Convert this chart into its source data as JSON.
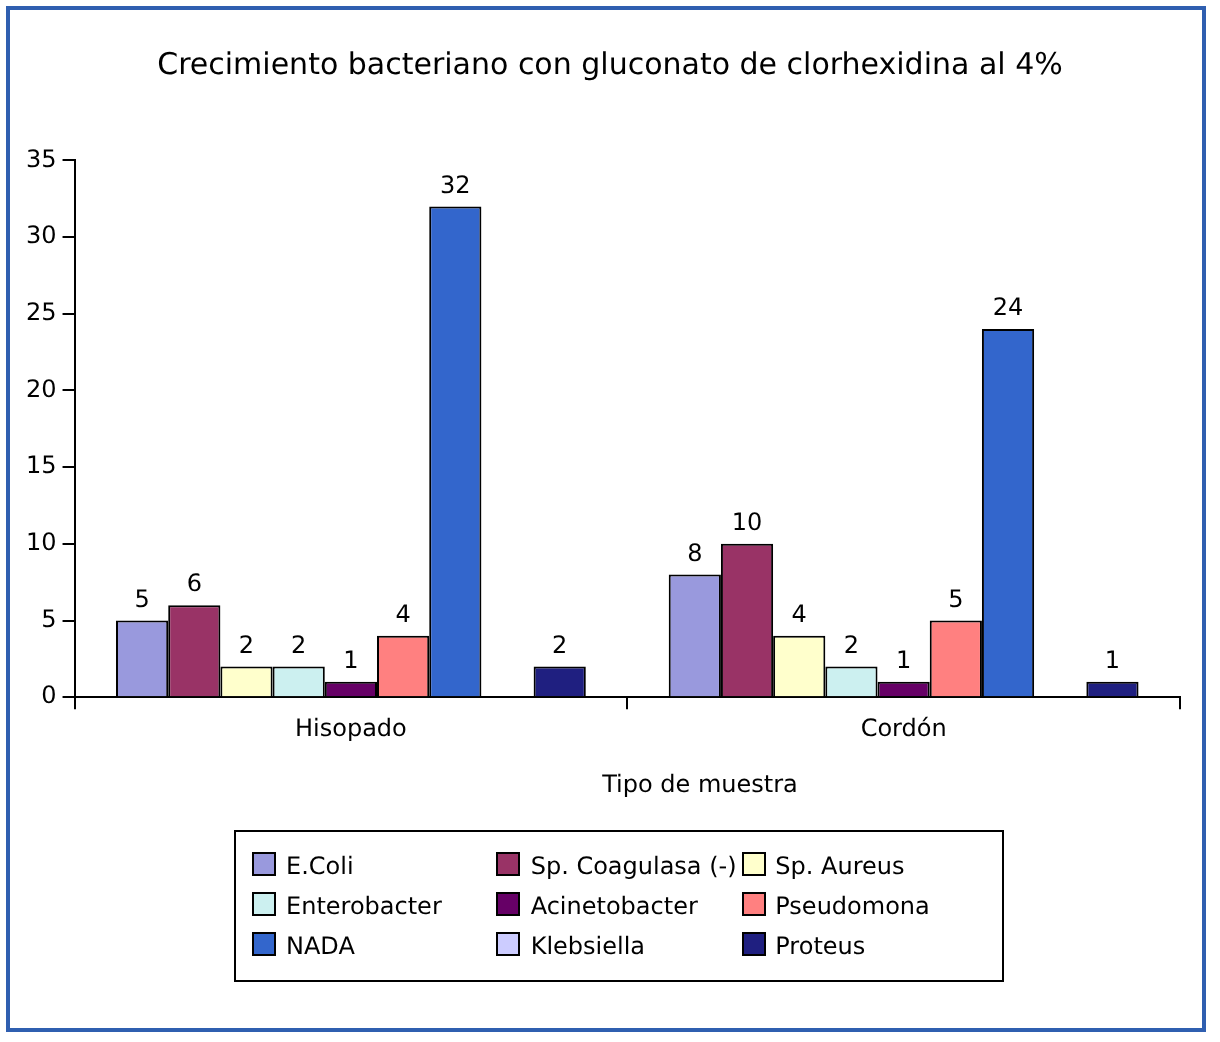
{
  "chart_data": {
    "type": "bar",
    "title": "Crecimiento bacteriano con gluconato de clorhexidina al 4%",
    "xlabel": "Tipo de muestra",
    "categories": [
      "Hisopado",
      "Cordón"
    ],
    "series": [
      {
        "name": "E.Coli",
        "color": "#9999dd",
        "values": [
          5,
          8
        ]
      },
      {
        "name": "Sp. Coagulasa (-)",
        "color": "#993366",
        "values": [
          6,
          10
        ]
      },
      {
        "name": "Sp. Aureus",
        "color": "#ffffcc",
        "values": [
          2,
          4
        ]
      },
      {
        "name": "Enterobacter",
        "color": "#ccf0f0",
        "values": [
          2,
          2
        ]
      },
      {
        "name": "Acinetobacter",
        "color": "#660066",
        "values": [
          1,
          1
        ]
      },
      {
        "name": "Pseudomona",
        "color": "#ff8080",
        "values": [
          4,
          5
        ]
      },
      {
        "name": "NADA",
        "color": "#3366cc",
        "values": [
          32,
          24
        ]
      },
      {
        "name": "Klebsiella",
        "color": "#ccccff",
        "values": [
          null,
          null
        ]
      },
      {
        "name": "Proteus",
        "color": "#1f1f80",
        "values": [
          2,
          1
        ]
      }
    ],
    "ylim": [
      0,
      35
    ],
    "yticks": [
      0,
      5,
      10,
      15,
      20,
      25,
      30,
      35
    ],
    "grid": false,
    "legend": "bottom",
    "data_labels": true
  }
}
